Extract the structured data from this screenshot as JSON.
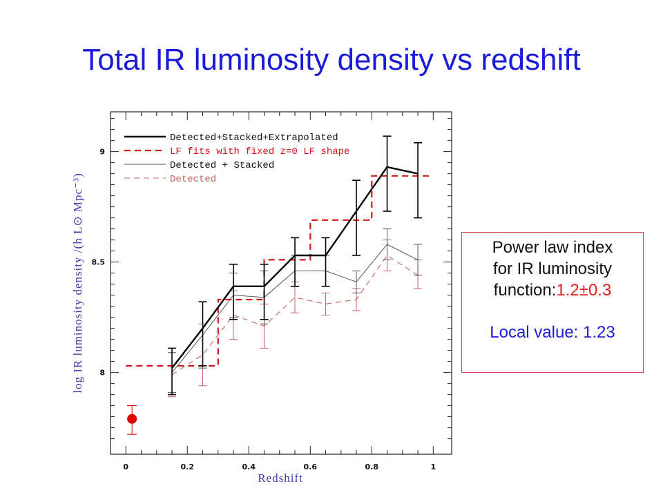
{
  "page": {
    "title": "Total IR luminosity density vs redshift"
  },
  "note": {
    "line1": "Power law index",
    "line2": "for IR luminosity",
    "line3_prefix": "function:",
    "line3_value": "1.2±0.3",
    "local": "Local value: 1.23"
  },
  "chart_data": {
    "type": "line",
    "title": "",
    "xlabel": "Redshift",
    "ylabel": "log IR luminosity density /(h L⊙ Mpc⁻³)",
    "xlim": [
      -0.05,
      1.06
    ],
    "ylim": [
      7.63,
      9.18
    ],
    "x_ticks": [
      0,
      0.2,
      0.4,
      0.6,
      0.8,
      1
    ],
    "x_tick_labels": [
      "0",
      "0.2",
      "0.4",
      "0.6",
      "0.8",
      "1"
    ],
    "y_ticks": [
      8,
      8.5,
      9
    ],
    "y_tick_labels": [
      "8",
      "8.5",
      "9"
    ],
    "grid": false,
    "legend_position": "top-left",
    "series": [
      {
        "name": "Detected+Stacked+Extrapolated",
        "style": "solid-thick",
        "color": "#000000",
        "x": [
          0.15,
          0.25,
          0.35,
          0.45,
          0.55,
          0.65,
          0.75,
          0.85,
          0.95
        ],
        "y": [
          8.02,
          8.2,
          8.39,
          8.39,
          8.53,
          8.53,
          8.73,
          8.93,
          8.9
        ],
        "err_low": [
          0.12,
          0.17,
          0.15,
          0.15,
          0.14,
          0.14,
          0.2,
          0.2,
          0.2
        ],
        "err_high": [
          0.09,
          0.12,
          0.1,
          0.1,
          0.08,
          0.08,
          0.14,
          0.14,
          0.14
        ]
      },
      {
        "name": "LF fits with fixed z=0 LF shape",
        "style": "dashed-step",
        "color": "#d01818",
        "x": [
          0,
          0.3,
          0.3,
          0.45,
          0.45,
          0.6,
          0.6,
          0.8,
          0.8,
          1
        ],
        "y": [
          8.03,
          8.03,
          8.33,
          8.33,
          8.51,
          8.51,
          8.69,
          8.69,
          8.89,
          8.89
        ]
      },
      {
        "name": "Detected + Stacked",
        "style": "solid-thin",
        "color": "#555555",
        "x": [
          0.15,
          0.25,
          0.35,
          0.45,
          0.55,
          0.65,
          0.75,
          0.85,
          0.95
        ],
        "y": [
          8.0,
          8.17,
          8.35,
          8.34,
          8.46,
          8.46,
          8.41,
          8.58,
          8.51
        ],
        "err_low": [
          0.09,
          0.15,
          0.1,
          0.12,
          0.07,
          0.07,
          0.05,
          0.07,
          0.07
        ],
        "err_high": [
          0.09,
          0.15,
          0.1,
          0.12,
          0.07,
          0.07,
          0.05,
          0.07,
          0.07
        ]
      },
      {
        "name": "Detected",
        "style": "dashed-thin",
        "color": "#c86060",
        "x": [
          0.15,
          0.25,
          0.35,
          0.45,
          0.55,
          0.65,
          0.75,
          0.85,
          0.95
        ],
        "y": [
          7.99,
          8.08,
          8.26,
          8.21,
          8.34,
          8.31,
          8.33,
          8.53,
          8.44
        ],
        "err_low": [
          0.1,
          0.14,
          0.11,
          0.1,
          0.07,
          0.05,
          0.05,
          0.07,
          0.06
        ],
        "err_high": [
          0.1,
          0.14,
          0.11,
          0.1,
          0.07,
          0.05,
          0.05,
          0.07,
          0.07
        ]
      }
    ],
    "local_point": {
      "x": 0.02,
      "y": 7.79,
      "err_low": 0.07,
      "err_high": 0.06,
      "color": "#e00000"
    }
  }
}
